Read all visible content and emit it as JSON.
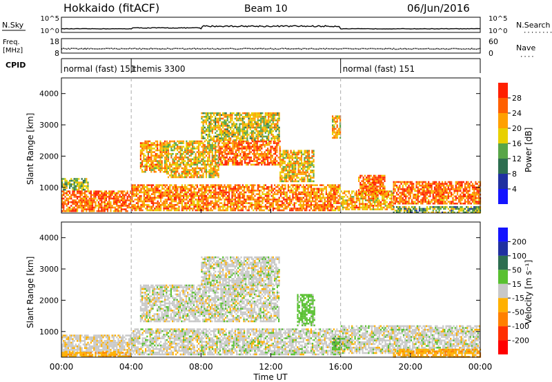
{
  "header": {
    "station": "Hokkaido (fitACF)",
    "beam": "Beam 10",
    "date": "06/Jun/2016"
  },
  "top_panels": {
    "nsky_label": "N.Sky",
    "nsky_ticks": [
      "10^5",
      "10^0"
    ],
    "nsky_right_ticks": [
      "10^5",
      "10^0"
    ],
    "nsearch_label": "N.Search",
    "freq_label_1": "Freq.",
    "freq_label_2": "[MHz]",
    "freq_ticks": [
      "18",
      "8"
    ],
    "nave_ticks": [
      "60",
      "0"
    ],
    "nave_label": "Nave",
    "cpid_label": "CPID",
    "cpid_segments": [
      {
        "label": "normal (fast) 151",
        "start_h": 0.0,
        "end_h": 4.0
      },
      {
        "label": "themis 3300",
        "start_h": 4.0,
        "end_h": 16.0
      },
      {
        "label": "normal (fast) 151",
        "start_h": 16.0,
        "end_h": 24.0
      }
    ]
  },
  "axes": {
    "ylabel": "Slant Range [km]",
    "yticks": [
      "1000",
      "2000",
      "3000",
      "4000"
    ],
    "xticks": [
      "00:00",
      "04:00",
      "08:00",
      "12:00",
      "16:00",
      "20:00",
      "00:00"
    ],
    "xlabel": "Time UT"
  },
  "colorbars": {
    "power": {
      "label": "Power [dB]",
      "ticks": [
        "4",
        "8",
        "12",
        "16",
        "20",
        "24",
        "28"
      ],
      "colors": [
        "#1414ff",
        "#2030a0",
        "#2d6e50",
        "#58a548",
        "#e8d000",
        "#ffa000",
        "#ff6000",
        "#ff2000"
      ]
    },
    "velocity": {
      "label": "Velocity [m s⁻¹]",
      "ticks": [
        "200",
        "100",
        "50",
        "15",
        "-15",
        "-50",
        "-100",
        "-200"
      ],
      "colors": [
        "#1414ff",
        "#2030a0",
        "#2d6e50",
        "#58c030",
        "#c8c8c8",
        "#ffb000",
        "#ff8000",
        "#ff3000",
        "#ff0000"
      ]
    }
  },
  "chart_data": {
    "type": "heatmap",
    "x_unit": "hours UT",
    "xlim": [
      0,
      24
    ],
    "ylim": [
      180,
      4500
    ],
    "y_unit": "km",
    "grid": false,
    "panels": [
      {
        "name": "Power",
        "scale": [
          0,
          30
        ],
        "regions": [
          {
            "t0": 0.0,
            "t1": 4.0,
            "r0": 250,
            "r1": 900,
            "value": 26
          },
          {
            "t0": 0.0,
            "t1": 1.5,
            "r0": 900,
            "r1": 1300,
            "value": 15
          },
          {
            "t0": 4.0,
            "t1": 16.0,
            "r0": 250,
            "r1": 1100,
            "value": 24
          },
          {
            "t0": 4.5,
            "t1": 6.0,
            "r0": 1500,
            "r1": 2500,
            "value": 22
          },
          {
            "t0": 6.0,
            "t1": 9.0,
            "r0": 1300,
            "r1": 2500,
            "value": 20
          },
          {
            "t0": 9.0,
            "t1": 12.5,
            "r0": 1700,
            "r1": 2500,
            "value": 26
          },
          {
            "t0": 8.0,
            "t1": 12.5,
            "r0": 2500,
            "r1": 3400,
            "value": 18
          },
          {
            "t0": 12.5,
            "t1": 14.5,
            "r0": 1200,
            "r1": 2200,
            "value": 20
          },
          {
            "t0": 15.5,
            "t1": 16.0,
            "r0": 2600,
            "r1": 3300,
            "value": 20
          },
          {
            "t0": 16.0,
            "t1": 19.0,
            "r0": 300,
            "r1": 900,
            "value": 22
          },
          {
            "t0": 17.0,
            "t1": 18.5,
            "r0": 800,
            "r1": 1400,
            "value": 26
          },
          {
            "t0": 19.0,
            "t1": 24.0,
            "r0": 500,
            "r1": 1200,
            "value": 26
          },
          {
            "t0": 19.0,
            "t1": 24.0,
            "r0": 180,
            "r1": 400,
            "value": 14
          }
        ]
      },
      {
        "name": "Velocity",
        "scale": [
          -250,
          250
        ],
        "regions": [
          {
            "t0": 0.0,
            "t1": 4.0,
            "r0": 250,
            "r1": 900,
            "value": -5
          },
          {
            "t0": 0.0,
            "t1": 4.0,
            "r0": 180,
            "r1": 350,
            "value": -40
          },
          {
            "t0": 4.0,
            "t1": 16.0,
            "r0": 250,
            "r1": 1100,
            "value": 0
          },
          {
            "t0": 4.5,
            "t1": 12.5,
            "r0": 1300,
            "r1": 2500,
            "value": 0
          },
          {
            "t0": 8.0,
            "t1": 12.5,
            "r0": 2500,
            "r1": 3400,
            "value": 0
          },
          {
            "t0": 13.5,
            "t1": 14.5,
            "r0": 1200,
            "r1": 2200,
            "value": 30
          },
          {
            "t0": 15.5,
            "t1": 16.5,
            "r0": 400,
            "r1": 800,
            "value": 40
          },
          {
            "t0": 16.0,
            "t1": 24.0,
            "r0": 300,
            "r1": 1200,
            "value": 0
          },
          {
            "t0": 19.0,
            "t1": 24.0,
            "r0": 180,
            "r1": 450,
            "value": -40
          }
        ]
      }
    ]
  }
}
